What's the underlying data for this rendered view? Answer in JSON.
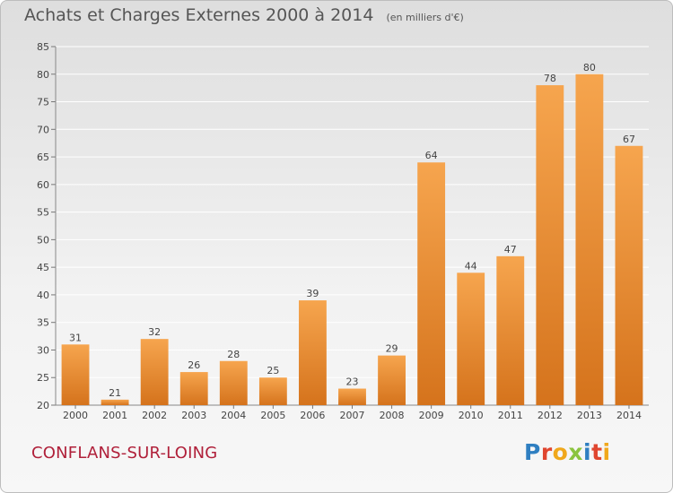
{
  "title": "Achats et Charges Externes 2000 à 2014",
  "unit_note": "(en milliers d'€)",
  "commune": "CONFLANS-SUR-LOING",
  "logo_text": "Proxiti",
  "colors": {
    "bar_light": "#f6a54e",
    "bar_dark": "#d5731c",
    "grid": "#ffffff",
    "axis_text": "#444444",
    "commune": "#b0203a",
    "logo_letters": [
      "#2f7fc1",
      "#e0462f",
      "#f0a81c",
      "#8bc43f",
      "#2f7fc1",
      "#e0462f",
      "#f0a81c"
    ]
  },
  "chart_data": {
    "type": "bar",
    "title": "Achats et Charges Externes 2000 à 2014",
    "subtitle": "(en milliers d'€)",
    "categories": [
      "2000",
      "2001",
      "2002",
      "2003",
      "2004",
      "2005",
      "2006",
      "2007",
      "2008",
      "2009",
      "2010",
      "2011",
      "2012",
      "2013",
      "2014"
    ],
    "values": [
      31,
      21,
      32,
      26,
      28,
      25,
      39,
      23,
      29,
      64,
      44,
      47,
      78,
      80,
      67
    ],
    "ylim": [
      20,
      85
    ],
    "yticks": [
      20,
      25,
      30,
      35,
      40,
      45,
      50,
      55,
      60,
      65,
      70,
      75,
      80,
      85
    ],
    "grid": true,
    "data_labels": true
  }
}
